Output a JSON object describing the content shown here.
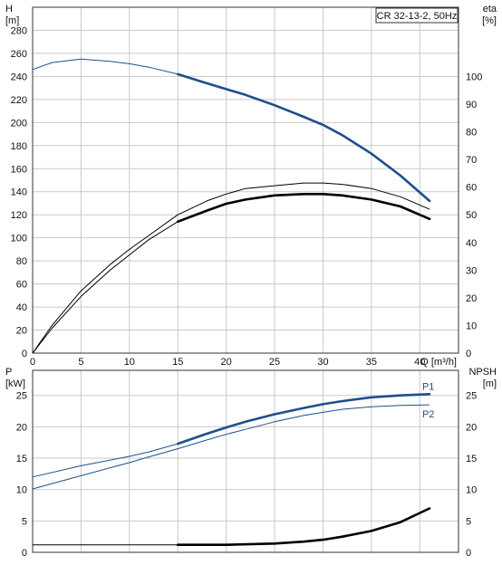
{
  "colors": {
    "blue": "#1f4e8c",
    "black": "#000000",
    "grid": "#c9c9c9",
    "frame": "#333333"
  },
  "chart_data": [
    {
      "type": "line",
      "legend_text": "CR 32-13-2, 50Hz",
      "legend_placement": "top-right",
      "grid": true,
      "x_axis": {
        "label": "Q [m³/h]",
        "range": [
          0,
          44
        ],
        "ticks": [
          0,
          5,
          10,
          15,
          20,
          25,
          30,
          35,
          40
        ],
        "tick_labels": [
          "0",
          "5",
          "10",
          "15",
          "20",
          "25",
          "30",
          "35",
          "40"
        ]
      },
      "y_left": {
        "label_top": "H",
        "label_unit": "[m]",
        "range": [
          0,
          300
        ],
        "ticks": [
          0,
          20,
          40,
          60,
          80,
          100,
          120,
          140,
          160,
          180,
          200,
          220,
          240,
          260,
          280
        ],
        "tick_labels": [
          "0",
          "20",
          "40",
          "60",
          "80",
          "100",
          "120",
          "140",
          "160",
          "180",
          "200",
          "220",
          "240",
          "260",
          "280"
        ]
      },
      "y_right": {
        "label_top": "eta",
        "label_unit": "[%]",
        "range": [
          0,
          125
        ],
        "ticks": [
          0,
          10,
          20,
          30,
          40,
          50,
          60,
          70,
          80,
          90,
          100
        ],
        "tick_labels": [
          "0",
          "10",
          "20",
          "30",
          "40",
          "50",
          "60",
          "70",
          "80",
          "90",
          "100"
        ]
      },
      "series": [
        {
          "axis": "left",
          "color": "blue",
          "bold_from": 15,
          "x": [
            0,
            2,
            5,
            8,
            10,
            12,
            15,
            18,
            20,
            22,
            25,
            28,
            30,
            32,
            35,
            38,
            41
          ],
          "y": [
            246,
            252,
            255,
            253,
            251,
            248,
            242,
            234,
            229,
            224,
            215,
            205,
            198,
            189,
            173,
            154,
            132
          ]
        },
        {
          "axis": "right",
          "color": "black",
          "bold_from": null,
          "x": [
            0,
            2,
            5,
            8,
            10,
            12,
            15,
            18,
            20,
            22,
            25,
            28,
            30,
            32,
            35,
            38,
            41
          ],
          "y": [
            0,
            10,
            22.5,
            32,
            37.5,
            42.5,
            50,
            55,
            57.5,
            59.5,
            60.5,
            61.5,
            61.5,
            61,
            59.5,
            56.5,
            52
          ]
        },
        {
          "axis": "right",
          "color": "black",
          "bold_from": null,
          "x": [
            0,
            2,
            5,
            8,
            10,
            12,
            15,
            18,
            20,
            22,
            25,
            28,
            30,
            32,
            35,
            38,
            41
          ],
          "y": [
            0,
            9,
            20.5,
            30,
            35.5,
            41,
            47.5,
            51.5,
            54,
            55.5,
            57,
            57.5,
            57.5,
            57,
            55.5,
            53,
            48.5
          ]
        },
        {
          "axis": "right",
          "color": "black",
          "bold_from": 15,
          "x": [
            15,
            18,
            20,
            22,
            25,
            28,
            30,
            32,
            35,
            38,
            41
          ],
          "y": [
            47.5,
            51.5,
            54,
            55.5,
            57,
            57.5,
            57.5,
            57,
            55.5,
            53,
            48.5
          ]
        }
      ]
    },
    {
      "type": "line",
      "grid": true,
      "x_axis": {
        "range": [
          0,
          44
        ],
        "ticks": [
          0,
          5,
          10,
          15,
          20,
          25,
          30,
          35,
          40
        ]
      },
      "y_left": {
        "label_top": "P",
        "label_unit": "[kW]",
        "range": [
          0,
          29
        ],
        "ticks": [
          0,
          5,
          10,
          15,
          20,
          25
        ],
        "tick_labels": [
          "0",
          "5",
          "10",
          "15",
          "20",
          "25"
        ]
      },
      "y_right": {
        "label_top": "NPSH",
        "label_unit": "[m]",
        "range": [
          0,
          29
        ],
        "ticks": [
          0,
          5,
          10,
          15,
          20,
          25
        ],
        "tick_labels": [
          "0",
          "5",
          "10",
          "15",
          "20",
          "25"
        ]
      },
      "series": [
        {
          "name": "P1",
          "axis": "left",
          "color": "blue",
          "bold_from": 15,
          "x": [
            0,
            5,
            10,
            12,
            15,
            18,
            20,
            22,
            25,
            28,
            30,
            32,
            35,
            38,
            41
          ],
          "y": [
            12,
            13.8,
            15.3,
            16,
            17.3,
            18.9,
            19.9,
            20.8,
            22,
            23,
            23.6,
            24.1,
            24.7,
            25,
            25.2
          ]
        },
        {
          "name": "P2",
          "axis": "left",
          "color": "blue",
          "bold_from": null,
          "x": [
            0,
            5,
            10,
            12,
            15,
            18,
            20,
            22,
            25,
            28,
            30,
            32,
            35,
            38,
            41
          ],
          "y": [
            10.1,
            12.2,
            14.3,
            15.2,
            16.5,
            17.9,
            18.8,
            19.6,
            20.8,
            21.8,
            22.3,
            22.8,
            23.2,
            23.4,
            23.5
          ]
        },
        {
          "axis": "right",
          "color": "black",
          "bold_from": 15,
          "x": [
            15,
            20,
            25,
            28,
            30,
            32,
            35,
            38,
            41
          ],
          "y": [
            1.2,
            1.2,
            1.4,
            1.7,
            2,
            2.5,
            3.4,
            4.8,
            7
          ]
        },
        {
          "axis": "right",
          "color": "black",
          "bold_from": null,
          "x": [
            0,
            15
          ],
          "y": [
            1.2,
            1.2
          ]
        }
      ]
    }
  ]
}
